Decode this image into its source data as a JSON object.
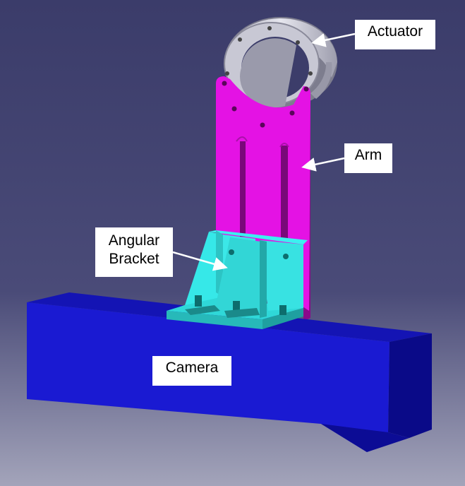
{
  "labels": {
    "actuator": "Actuator",
    "arm": "Arm",
    "bracket_line1": "Angular",
    "bracket_line2": "Bracket",
    "camera": "Camera"
  },
  "colors": {
    "background_top": "#3b3c6a",
    "background_bottom": "#9e9fb6",
    "actuator": "#c9c9d6",
    "arm": "#e010e0",
    "bracket": "#2ee6e6",
    "camera": "#1a1ac8",
    "arrow": "#ffffff"
  }
}
